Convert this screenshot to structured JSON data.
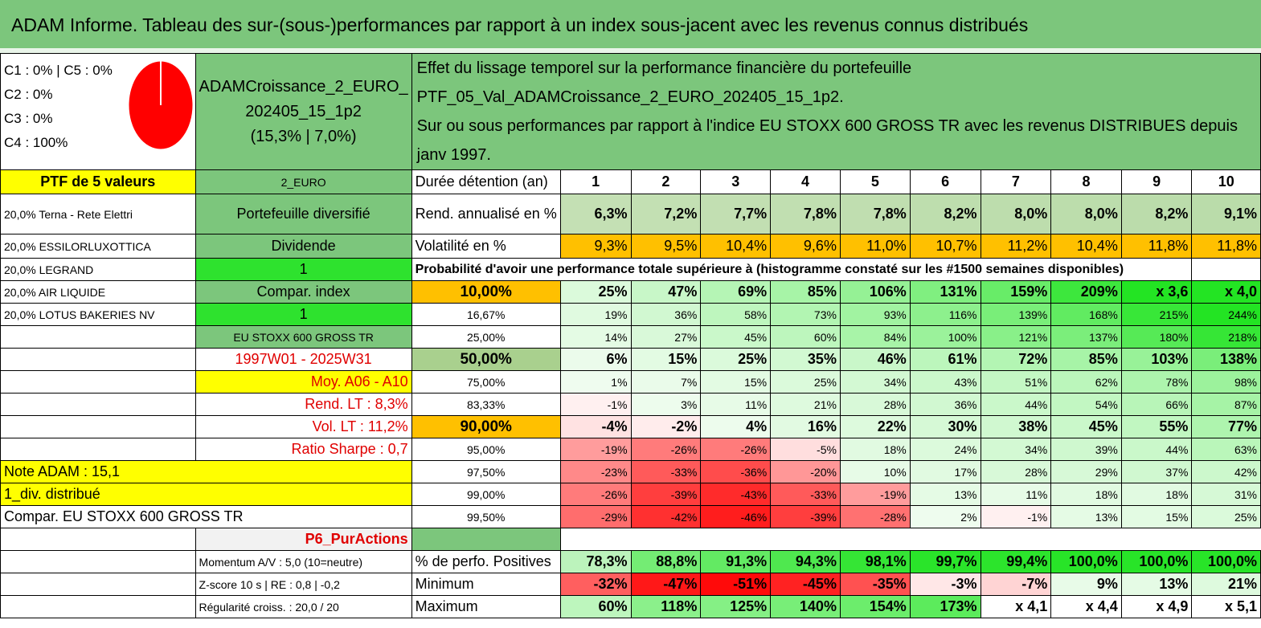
{
  "title": "ADAM Informe. Tableau des sur-(sous-)performances par rapport à un index sous-jacent avec les revenus connus distribués",
  "pie": {
    "legend": [
      "C1 : 0% | C5 : 0%",
      "C2 : 0%",
      "C3 : 0%",
      "C4 : 100%"
    ],
    "color": "#ff0000"
  },
  "fund": {
    "name_line1": "ADAMCroissance_2_EURO_",
    "name_line2": "202405_15_1p2",
    "name_line3": "(15,3% | 7,0%)"
  },
  "description": {
    "line1": "Effet du lissage temporel sur la performance financière du portefeuille PTF_05_Val_ADAMCroissance_2_EURO_202405_15_1p2.",
    "line2": "Sur ou sous performances par rapport à l'indice EU STOXX 600 GROSS TR avec les revenus DISTRIBUES depuis janv 1997."
  },
  "portfolio": {
    "header": "PTF de 5 valeurs",
    "holdings": [
      "20,0% Terna - Rete Elettri",
      "20,0% ESSILORLUXOTTICA",
      "20,0% LEGRAND",
      "20,0% AIR LIQUIDE",
      "20,0% LOTUS BAKERIES NV"
    ]
  },
  "side": {
    "currency": "2_EURO",
    "type": "Portefeuille diversifié",
    "dividend": "Dividende",
    "one_a": "1",
    "compar_index": "Compar. index",
    "one_b": "1",
    "index_name": "EU STOXX 600 GROSS TR",
    "period": "1997W01 - 2025W31",
    "moy": "Moy. A06 - A10",
    "rend_lt": "Rend. LT : 8,3%",
    "vol_lt": "Vol. LT : 11,2%",
    "sharpe": "Ratio Sharpe : 0,7",
    "note": "Note ADAM : 15,1",
    "div": "1_div. distribué",
    "compar": "Compar. EU STOXX 600 GROSS TR",
    "p6": "P6_PurActions",
    "momentum": "Momentum A/V : 5,0 (10=neutre)",
    "zscore": "Z-score 10 s | RE : 0,8 | -0,2",
    "regularite": "Régularité croiss. : 20,0 / 20"
  },
  "labels": {
    "duree": "Durée détention (an)",
    "rend": "Rend. annualisé en %",
    "vol": "Volatilité en %",
    "prob": "Probabilité d'avoir une performance totale supérieure à (histogramme constaté sur les #1500 semaines disponibles)",
    "pos": "% de perfo. Positives",
    "min": "Minimum",
    "max": "Maximum"
  },
  "years": [
    "1",
    "2",
    "3",
    "4",
    "5",
    "6",
    "7",
    "8",
    "9",
    "10"
  ],
  "rendement": [
    "6,3%",
    "7,2%",
    "7,7%",
    "7,8%",
    "7,8%",
    "8,2%",
    "8,0%",
    "8,0%",
    "8,2%",
    "9,1%"
  ],
  "volatilite": [
    "9,3%",
    "9,5%",
    "10,4%",
    "9,6%",
    "11,0%",
    "10,7%",
    "11,2%",
    "10,4%",
    "11,8%",
    "11,8%"
  ],
  "quantiles": [
    {
      "p": "10,00%",
      "values": [
        "25%",
        "47%",
        "69%",
        "85%",
        "106%",
        "131%",
        "159%",
        "209%",
        "x 3,6",
        "x 4,0"
      ]
    },
    {
      "p": "16,67%",
      "values": [
        "19%",
        "36%",
        "58%",
        "73%",
        "93%",
        "116%",
        "139%",
        "168%",
        "215%",
        "244%"
      ]
    },
    {
      "p": "25,00%",
      "values": [
        "14%",
        "27%",
        "45%",
        "60%",
        "84%",
        "100%",
        "121%",
        "137%",
        "180%",
        "218%"
      ]
    },
    {
      "p": "50,00%",
      "values": [
        "6%",
        "15%",
        "25%",
        "35%",
        "46%",
        "61%",
        "72%",
        "85%",
        "103%",
        "138%"
      ]
    },
    {
      "p": "75,00%",
      "values": [
        "1%",
        "7%",
        "15%",
        "25%",
        "34%",
        "43%",
        "51%",
        "62%",
        "78%",
        "98%"
      ]
    },
    {
      "p": "83,33%",
      "values": [
        "-1%",
        "3%",
        "11%",
        "21%",
        "28%",
        "36%",
        "44%",
        "54%",
        "66%",
        "87%"
      ]
    },
    {
      "p": "90,00%",
      "values": [
        "-4%",
        "-2%",
        "4%",
        "16%",
        "22%",
        "30%",
        "38%",
        "45%",
        "55%",
        "77%"
      ]
    },
    {
      "p": "95,00%",
      "values": [
        "-19%",
        "-26%",
        "-26%",
        "-5%",
        "18%",
        "24%",
        "34%",
        "39%",
        "44%",
        "63%"
      ]
    },
    {
      "p": "97,50%",
      "values": [
        "-23%",
        "-33%",
        "-36%",
        "-20%",
        "10%",
        "17%",
        "28%",
        "29%",
        "37%",
        "42%"
      ]
    },
    {
      "p": "99,00%",
      "values": [
        "-26%",
        "-39%",
        "-43%",
        "-33%",
        "-19%",
        "13%",
        "11%",
        "18%",
        "18%",
        "31%"
      ]
    },
    {
      "p": "99,50%",
      "values": [
        "-29%",
        "-42%",
        "-46%",
        "-39%",
        "-28%",
        "2%",
        "-1%",
        "13%",
        "15%",
        "25%"
      ]
    }
  ],
  "positives": [
    "78,3%",
    "88,8%",
    "91,3%",
    "94,3%",
    "98,1%",
    "99,7%",
    "99,4%",
    "100,0%",
    "100,0%",
    "100,0%"
  ],
  "minimum": [
    "-32%",
    "-47%",
    "-51%",
    "-45%",
    "-35%",
    "-3%",
    "-7%",
    "9%",
    "13%",
    "21%"
  ],
  "maximum": [
    "60%",
    "118%",
    "125%",
    "140%",
    "154%",
    "173%",
    "x 4,1",
    "x 4,4",
    "x 4,9",
    "x 5,1"
  ]
}
